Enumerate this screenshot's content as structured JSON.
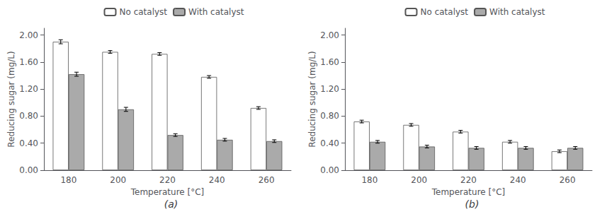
{
  "chart_data": [
    {
      "type": "bar",
      "title": "(a)",
      "categories": [
        "180",
        "200",
        "220",
        "240",
        "260"
      ],
      "series": [
        {
          "name": "No catalyst",
          "color": "#ffffff",
          "values": [
            1.9,
            1.75,
            1.72,
            1.38,
            0.92
          ],
          "errors": [
            0.03,
            0.02,
            0.02,
            0.02,
            0.02
          ]
        },
        {
          "name": "With catalyst",
          "color": "#aaaaaa",
          "values": [
            1.42,
            0.9,
            0.52,
            0.45,
            0.43
          ],
          "errors": [
            0.03,
            0.03,
            0.02,
            0.02,
            0.02
          ]
        }
      ],
      "xlabel": "Temperature [°C]",
      "ylabel": "Reducing sugar (mg/L)",
      "ylim": [
        0,
        2.1
      ],
      "yticks": [
        {
          "value": 0,
          "label": "0.00"
        },
        {
          "value": 0.4,
          "label": "0.40"
        },
        {
          "value": 0.8,
          "label": "0.80"
        },
        {
          "value": 1.2,
          "label": "1.20"
        },
        {
          "value": 1.6,
          "label": "1.60"
        },
        {
          "value": 2.0,
          "label": "2.00"
        }
      ],
      "grid": false,
      "legend": "upper center"
    },
    {
      "type": "bar",
      "title": "(b)",
      "categories": [
        "180",
        "200",
        "220",
        "240",
        "260"
      ],
      "series": [
        {
          "name": "No catalyst",
          "color": "#ffffff",
          "values": [
            0.72,
            0.67,
            0.57,
            0.42,
            0.28
          ],
          "errors": [
            0.02,
            0.02,
            0.02,
            0.02,
            0.02
          ]
        },
        {
          "name": "With catalyst",
          "color": "#aaaaaa",
          "values": [
            0.42,
            0.35,
            0.33,
            0.33,
            0.33
          ],
          "errors": [
            0.02,
            0.02,
            0.02,
            0.02,
            0.02
          ]
        }
      ],
      "xlabel": "Temperature [°C]",
      "ylabel": "Reducing sugar (mg/L)",
      "ylim": [
        0,
        2.1
      ],
      "yticks": [
        {
          "value": 0,
          "label": "0.00"
        },
        {
          "value": 0.4,
          "label": "0.40"
        },
        {
          "value": 0.8,
          "label": "0.80"
        },
        {
          "value": 1.2,
          "label": "1.20"
        },
        {
          "value": 1.6,
          "label": "1.60"
        },
        {
          "value": 2.0,
          "label": "2.00"
        }
      ],
      "grid": false,
      "legend": "upper center"
    }
  ]
}
